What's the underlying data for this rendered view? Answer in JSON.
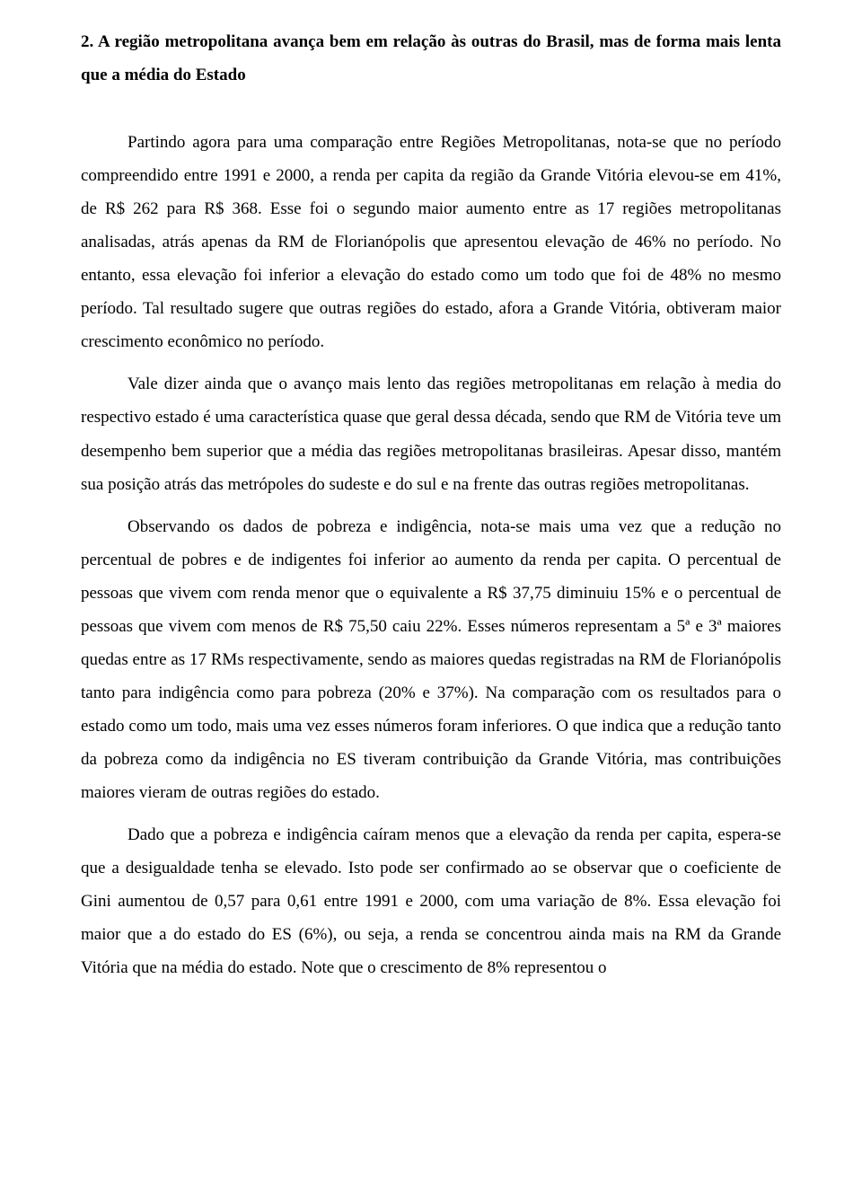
{
  "doc": {
    "heading": "2. A região metropolitana avança bem em relação às outras do Brasil, mas de forma mais lenta que a média do Estado",
    "p1": "Partindo agora para uma comparação entre Regiões Metropolitanas, nota-se que no período compreendido entre 1991 e 2000, a renda per capita da região da Grande Vitória elevou-se em 41%, de R$ 262 para R$ 368. Esse foi o segundo maior aumento entre as 17 regiões metropolitanas analisadas, atrás apenas da RM de Florianópolis que apresentou elevação de 46% no período. No entanto, essa elevação foi inferior a elevação do estado como um todo que foi de 48% no mesmo período. Tal resultado sugere que outras regiões do estado, afora a Grande Vitória, obtiveram maior crescimento econômico no período.",
    "p2": "Vale dizer ainda que o avanço mais lento das regiões metropolitanas em relação à media do respectivo estado é uma característica quase que geral dessa década, sendo que RM de Vitória teve um desempenho bem superior que a média das regiões metropolitanas brasileiras. Apesar disso, mantém sua posição atrás das metrópoles do sudeste e do sul e na frente das outras regiões metropolitanas.",
    "p3": "Observando os dados de pobreza e indigência, nota-se mais uma vez que a redução no percentual de pobres e de indigentes foi inferior ao aumento da renda per capita. O percentual de pessoas que vivem com renda menor que o equivalente a R$ 37,75 diminuiu 15% e o percentual de pessoas que vivem com menos de R$ 75,50 caiu 22%. Esses números representam a 5ª e 3ª maiores quedas entre as 17 RMs respectivamente, sendo as maiores quedas registradas na RM de Florianópolis tanto para indigência como para pobreza (20% e 37%). Na comparação com os resultados para o estado como um todo, mais uma vez esses números foram inferiores. O que indica que a redução tanto da pobreza como da indigência no ES tiveram contribuição da Grande Vitória, mas contribuições maiores vieram de outras regiões do estado.",
    "p4": "Dado que a pobreza e indigência caíram menos que a elevação da renda per capita, espera-se que a desigualdade tenha se elevado. Isto pode ser confirmado ao se observar que o coeficiente de Gini aumentou de 0,57 para 0,61 entre 1991 e 2000, com uma variação de 8%. Essa elevação foi maior que a do estado do ES (6%), ou seja, a renda se concentrou ainda mais na RM da Grande Vitória que na média do estado. Note que o crescimento de 8% representou o"
  }
}
